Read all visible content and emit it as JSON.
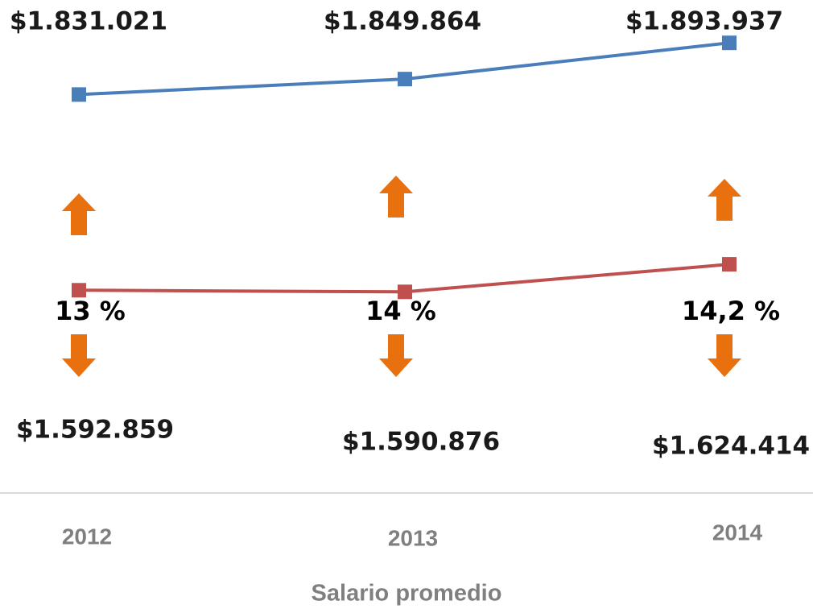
{
  "chart_data": {
    "type": "line",
    "categories": [
      "2012",
      "2013",
      "2014"
    ],
    "series": [
      {
        "color": "#4a7ebb",
        "values": [
          1831021,
          1849864,
          1893937
        ],
        "value_labels": [
          "$1.831.021",
          "$1.849.864",
          "$1.893.937"
        ]
      },
      {
        "color": "#c0504d",
        "values": [
          1592859,
          1590876,
          1624414
        ],
        "value_labels": [
          "$1.592.859",
          "$1.590.876",
          "$1.624.414"
        ]
      }
    ],
    "annotations": [
      "13 %",
      "14 %",
      "14,2 %"
    ],
    "annotation_color": "#e8700f",
    "ylim": [
      1300000,
      1950000
    ],
    "x_label": "Salario promedio"
  }
}
